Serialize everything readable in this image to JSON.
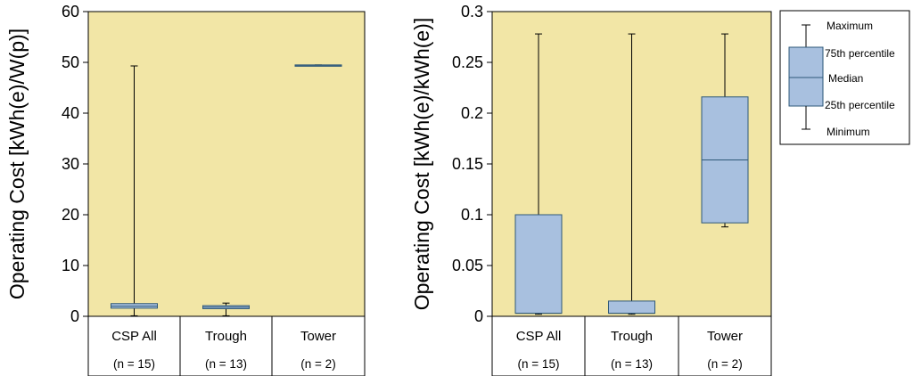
{
  "chart_data": [
    {
      "type": "box",
      "ylabel": "Operating Cost [kWh(e)/W(p)]",
      "ylim": [
        0,
        60
      ],
      "yticks": [
        "0",
        "10",
        "20",
        "30",
        "40",
        "50",
        "60"
      ],
      "yticks_values": [
        0,
        10,
        20,
        30,
        40,
        50,
        60
      ],
      "categories": [
        "CSP All",
        "Trough",
        "Tower"
      ],
      "counts": [
        "(n = 15)",
        "(n = 13)",
        "(n = 2)"
      ],
      "boxes": [
        {
          "min": 0.1,
          "q1": 1.6,
          "median": 2.0,
          "q3": 2.5,
          "max": 49.3
        },
        {
          "min": 0.1,
          "q1": 1.5,
          "median": 1.8,
          "q3": 2.1,
          "max": 2.6
        },
        {
          "min": 49.3,
          "q1": 49.3,
          "median": 49.4,
          "q3": 49.5,
          "max": 49.5
        }
      ],
      "background": "#f2e6a6",
      "box_color": "#a8c0df",
      "box_edge": "#2e5878"
    },
    {
      "type": "box",
      "ylabel": "Operating Cost [kWh(e)/kWh(e)]",
      "ylim": [
        0,
        0.3
      ],
      "yticks": [
        "0",
        "0.05",
        "0.1",
        "0.15",
        "0.2",
        "0.25",
        "0.3"
      ],
      "yticks_values": [
        0,
        0.05,
        0.1,
        0.15,
        0.2,
        0.25,
        0.3
      ],
      "categories": [
        "CSP All",
        "Trough",
        "Tower"
      ],
      "counts": [
        "(n = 15)",
        "(n = 13)",
        "(n = 2)"
      ],
      "boxes": [
        {
          "min": 0.002,
          "q1": 0.003,
          "median": 0.003,
          "q3": 0.1,
          "max": 0.278
        },
        {
          "min": 0.002,
          "q1": 0.003,
          "median": 0.003,
          "q3": 0.015,
          "max": 0.278
        },
        {
          "min": 0.088,
          "q1": 0.092,
          "median": 0.154,
          "q3": 0.216,
          "max": 0.278
        }
      ],
      "background": "#f2e6a6",
      "box_color": "#a8c0df",
      "box_edge": "#2e5878"
    }
  ],
  "legend": {
    "maximum": "Maximum",
    "p75": "75th percentile",
    "median": "Median",
    "p25": "25th percentile",
    "minimum": "Minimum"
  }
}
